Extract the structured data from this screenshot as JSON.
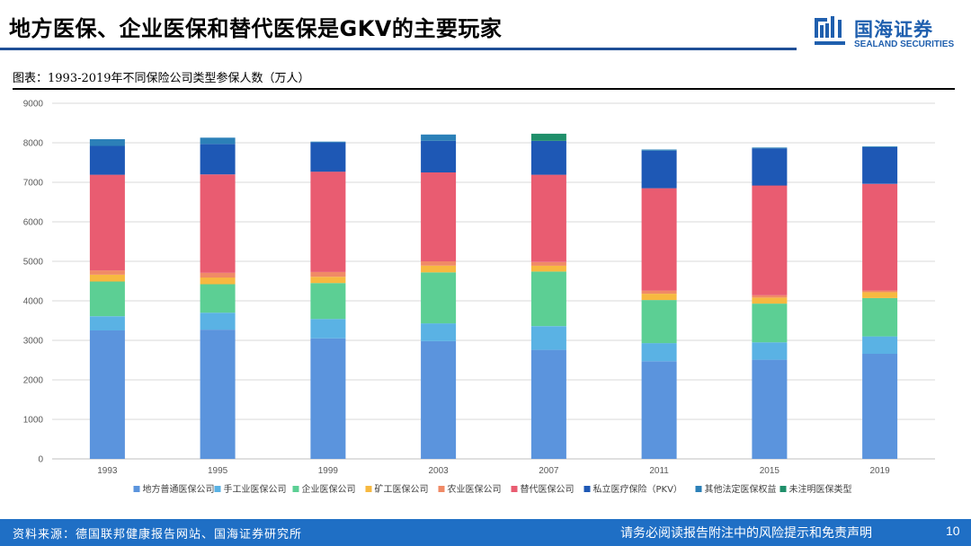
{
  "header": {
    "title": "地方医保、企业医保和替代医保是GKV的主要玩家",
    "logo_cn": "国海证券",
    "logo_en": "SEALAND SECURITIES"
  },
  "figure": {
    "caption": "图表：1993-2019年不同保险公司类型参保人数（万人）"
  },
  "footer": {
    "source": "资料来源：德国联邦健康报告网站、国海证券研究所",
    "disclaimer": "请务必阅读报告附注中的风险提示和免责声明",
    "page": "10"
  },
  "colors": {
    "brand": "#1f4e96",
    "footer": "#1f6fc5"
  },
  "chart_data": {
    "type": "bar",
    "stacked": true,
    "title": "",
    "xlabel": "",
    "ylabel": "",
    "ylim": [
      0,
      9000
    ],
    "yticks": [
      0,
      1000,
      2000,
      3000,
      4000,
      5000,
      6000,
      7000,
      8000,
      9000
    ],
    "grid": true,
    "legend_position": "bottom",
    "categories": [
      "1993",
      "1995",
      "1999",
      "2003",
      "2007",
      "2011",
      "2015",
      "2019"
    ],
    "series": [
      {
        "name": "地方普通医保公司",
        "color": "#5b94dd",
        "values": [
          3250,
          3270,
          3050,
          2980,
          2760,
          2470,
          2510,
          2660
        ]
      },
      {
        "name": "手工业医保公司",
        "color": "#5ab2e4",
        "values": [
          360,
          430,
          490,
          450,
          600,
          460,
          440,
          440
        ]
      },
      {
        "name": "企业医保公司",
        "color": "#5ccf94",
        "values": [
          880,
          720,
          910,
          1290,
          1380,
          1090,
          980,
          970
        ]
      },
      {
        "name": "矿工医保公司",
        "color": "#f7b940",
        "values": [
          170,
          170,
          160,
          170,
          150,
          160,
          150,
          150
        ]
      },
      {
        "name": "农业医保公司",
        "color": "#f08a66",
        "values": [
          110,
          120,
          120,
          110,
          90,
          80,
          60,
          40
        ]
      },
      {
        "name": "替代医保公司",
        "color": "#e95c71",
        "values": [
          2420,
          2490,
          2540,
          2250,
          2210,
          2590,
          2780,
          2700
        ]
      },
      {
        "name": "私立医疗保险（PKV）",
        "color": "#1e58b5",
        "values": [
          730,
          770,
          740,
          800,
          860,
          950,
          940,
          930
        ]
      },
      {
        "name": "其他法定医保权益",
        "color": "#2c80b8",
        "values": [
          170,
          160,
          20,
          160,
          0,
          30,
          20,
          20
        ]
      },
      {
        "name": "未注明医保类型",
        "color": "#1f8f6a",
        "values": [
          0,
          0,
          0,
          0,
          180,
          0,
          0,
          0
        ]
      }
    ]
  }
}
